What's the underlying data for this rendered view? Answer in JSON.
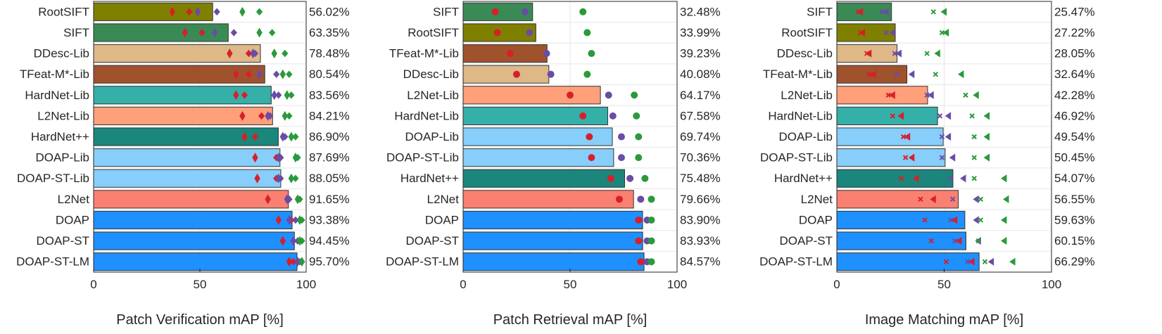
{
  "colors": {
    "olive": "#808000",
    "green": "#3a8a55",
    "tan": "#deb887",
    "brown": "#a0522d",
    "teal": "#35b0a8",
    "salmon": "#ffa07a",
    "darkteal": "#1b867b",
    "lightblue": "#87cefa",
    "coral": "#fa8072",
    "blue": "#1e90ff",
    "marker_red": "#d6202b",
    "marker_purple": "#6a4ca6",
    "marker_green": "#2a9a3a",
    "grid": "#e6e6e6"
  },
  "chart_data": [
    {
      "type": "bar",
      "orientation": "horizontal",
      "xlabel": "Patch Verification mAP [%]",
      "xlim": [
        0,
        100
      ],
      "xticks": [
        "0",
        "50",
        "100"
      ],
      "grid": true,
      "marker_shape": "diamond",
      "categories": [
        "RootSIFT",
        "SIFT",
        "DDesc-Lib",
        "TFeat-M*-Lib",
        "HardNet-Lib",
        "L2Net-Lib",
        "HardNet++",
        "DOAP-Lib",
        "DOAP-ST-Lib",
        "L2Net",
        "DOAP",
        "DOAP-ST",
        "DOAP-ST-LM"
      ],
      "bar_colors": [
        "olive",
        "green",
        "tan",
        "brown",
        "teal",
        "salmon",
        "darkteal",
        "lightblue",
        "lightblue",
        "coral",
        "blue",
        "blue",
        "blue"
      ],
      "values": [
        56.02,
        63.35,
        78.48,
        80.54,
        83.56,
        84.21,
        86.9,
        87.69,
        88.05,
        91.65,
        93.38,
        94.45,
        95.7
      ],
      "value_labels": [
        "56.02%",
        "63.35%",
        "78.48%",
        "80.54%",
        "83.56%",
        "84.21%",
        "86.90%",
        "87.69%",
        "88.05%",
        "91.65%",
        "93.38%",
        "94.45%",
        "95.70%"
      ],
      "series": [
        {
          "color": "marker_red",
          "style": "solid",
          "values": [
            37,
            43,
            64,
            67,
            67,
            70,
            71,
            76,
            77,
            82,
            87,
            89,
            92
          ]
        },
        {
          "color": "marker_red",
          "style": "outline",
          "values": [
            45,
            51,
            73,
            73,
            71,
            79,
            76,
            86,
            86,
            92,
            93,
            94,
            94
          ]
        },
        {
          "color": "marker_purple",
          "style": "solid",
          "values": [
            49,
            57,
            75,
            78,
            85,
            82,
            89,
            87,
            87,
            91,
            92,
            94,
            96
          ]
        },
        {
          "color": "marker_purple",
          "style": "outline",
          "values": [
            58,
            66,
            76,
            86,
            87,
            83,
            90,
            88,
            88,
            92,
            95,
            96,
            97
          ]
        },
        {
          "color": "marker_green",
          "style": "solid",
          "values": [
            70,
            78,
            85,
            89,
            91,
            90,
            93,
            95,
            93,
            96,
            97,
            97,
            98
          ]
        },
        {
          "color": "marker_green",
          "style": "outline",
          "values": [
            78,
            84,
            90,
            92,
            93,
            92,
            95,
            96,
            95,
            97,
            98,
            98,
            98
          ]
        }
      ]
    },
    {
      "type": "bar",
      "orientation": "horizontal",
      "xlabel": "Patch Retrieval mAP [%]",
      "xlim": [
        0,
        100
      ],
      "xticks": [
        "0",
        "50",
        "100"
      ],
      "grid": true,
      "marker_shape": "circle",
      "categories": [
        "SIFT",
        "RootSIFT",
        "TFeat-M*-Lib",
        "DDesc-Lib",
        "L2Net-Lib",
        "HardNet-Lib",
        "DOAP-Lib",
        "DOAP-ST-Lib",
        "HardNet++",
        "L2Net",
        "DOAP",
        "DOAP-ST",
        "DOAP-ST-LM"
      ],
      "bar_colors": [
        "green",
        "olive",
        "brown",
        "tan",
        "salmon",
        "teal",
        "lightblue",
        "lightblue",
        "darkteal",
        "coral",
        "blue",
        "blue",
        "blue"
      ],
      "values": [
        32.48,
        33.99,
        39.23,
        40.08,
        64.17,
        67.58,
        69.74,
        70.36,
        75.48,
        79.66,
        83.9,
        83.93,
        84.57
      ],
      "value_labels": [
        "32.48%",
        "33.99%",
        "39.23%",
        "40.08%",
        "64.17%",
        "67.58%",
        "69.74%",
        "70.36%",
        "75.48%",
        "79.66%",
        "83.90%",
        "83.93%",
        "84.57%"
      ],
      "series": [
        {
          "color": "marker_red",
          "style": "solid",
          "values": [
            15,
            16,
            22,
            25,
            50,
            56,
            59,
            60,
            69,
            73,
            82,
            82,
            83
          ]
        },
        {
          "color": "marker_purple",
          "style": "solid",
          "values": [
            29,
            31,
            39,
            41,
            68,
            70,
            74,
            74,
            78,
            83,
            86,
            86,
            86
          ]
        },
        {
          "color": "marker_green",
          "style": "solid",
          "values": [
            56,
            58,
            60,
            58,
            80,
            81,
            82,
            82,
            85,
            88,
            88,
            88,
            88
          ]
        }
      ]
    },
    {
      "type": "bar",
      "orientation": "horizontal",
      "xlabel": "Image Matching mAP [%]",
      "xlim": [
        0,
        100
      ],
      "xticks": [
        "0",
        "50",
        "100"
      ],
      "grid": true,
      "marker_shape": "cross-triangle",
      "categories": [
        "SIFT",
        "RootSIFT",
        "DDesc-Lib",
        "TFeat-M*-Lib",
        "L2Net-Lib",
        "HardNet-Lib",
        "DOAP-Lib",
        "DOAP-ST-Lib",
        "HardNet++",
        "L2Net",
        "DOAP",
        "DOAP-ST",
        "DOAP-ST-LM"
      ],
      "bar_colors": [
        "green",
        "olive",
        "tan",
        "brown",
        "salmon",
        "teal",
        "lightblue",
        "lightblue",
        "darkteal",
        "coral",
        "blue",
        "blue",
        "blue"
      ],
      "values": [
        25.47,
        27.22,
        28.05,
        32.64,
        42.28,
        46.92,
        49.54,
        50.45,
        54.07,
        56.55,
        59.63,
        60.15,
        66.29
      ],
      "value_labels": [
        "25.47%",
        "27.22%",
        "28.05%",
        "32.64%",
        "42.28%",
        "46.92%",
        "49.54%",
        "50.45%",
        "54.07%",
        "56.55%",
        "59.63%",
        "60.15%",
        "66.29%"
      ],
      "series": [
        {
          "color": "marker_red",
          "style": "cross",
          "values": [
            10,
            11,
            14,
            15,
            24,
            26,
            31,
            32,
            30,
            39,
            41,
            44,
            51
          ]
        },
        {
          "color": "marker_red",
          "style": "triangle",
          "values": [
            11,
            12,
            15,
            17,
            26,
            30,
            33,
            35,
            37,
            45,
            55,
            57,
            63
          ]
        },
        {
          "color": "marker_purple",
          "style": "cross",
          "values": [
            21,
            23,
            27,
            28,
            42,
            48,
            49,
            49,
            53,
            54,
            53,
            55,
            61
          ]
        },
        {
          "color": "marker_purple",
          "style": "triangle",
          "values": [
            23,
            26,
            29,
            35,
            44,
            52,
            52,
            54,
            59,
            65,
            65,
            66,
            72
          ]
        },
        {
          "color": "marker_green",
          "style": "cross",
          "values": [
            45,
            49,
            42,
            46,
            60,
            63,
            64,
            64,
            64,
            67,
            67,
            66,
            69
          ]
        },
        {
          "color": "marker_green",
          "style": "triangle",
          "values": [
            50,
            51,
            47,
            58,
            65,
            70,
            70,
            70,
            78,
            79,
            78,
            78,
            82
          ]
        }
      ]
    }
  ]
}
